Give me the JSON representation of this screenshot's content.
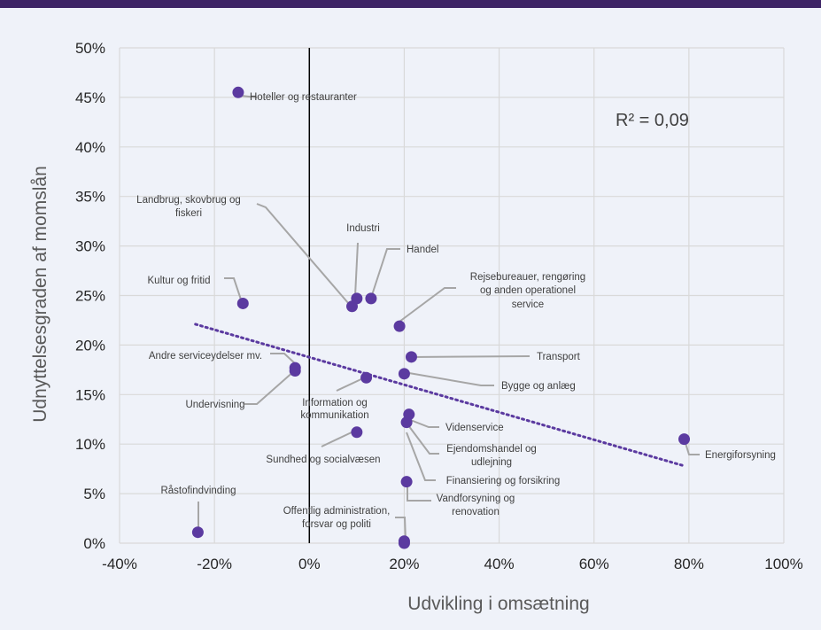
{
  "colors": {
    "top_band": "#3d2466",
    "background": "#eff2f9",
    "grid": "#d9d9d9",
    "zero_line": "#000000",
    "point": "#5b3aa0",
    "trendline": "#5b3aa0",
    "leader_line": "#a6a6a6",
    "text": "#404040"
  },
  "chart_data": {
    "type": "scatter",
    "title": "",
    "xlabel": "Udvikling i omsætning",
    "ylabel": "Udnyttelsesgraden af momslån",
    "xlim": [
      -0.4,
      1.0
    ],
    "ylim": [
      0,
      0.5
    ],
    "x_ticks": [
      -0.4,
      -0.2,
      0,
      0.2,
      0.4,
      0.6,
      0.8,
      1.0
    ],
    "y_ticks": [
      0,
      0.05,
      0.1,
      0.15,
      0.2,
      0.25,
      0.3,
      0.35,
      0.4,
      0.45,
      0.5
    ],
    "x_tick_labels": [
      "-40%",
      "-20%",
      "0%",
      "20%",
      "40%",
      "60%",
      "80%",
      "100%"
    ],
    "y_tick_labels": [
      "0%",
      "5%",
      "10%",
      "15%",
      "20%",
      "25%",
      "30%",
      "35%",
      "40%",
      "45%",
      "50%"
    ],
    "grid": true,
    "r_squared": "R² = 0,09",
    "trendline": {
      "x": [
        -0.24,
        0.79
      ],
      "y": [
        0.221,
        0.078
      ]
    },
    "points": [
      {
        "label": "Hoteller og restauranter",
        "x": -0.15,
        "y": 0.455
      },
      {
        "label": "Landbrug, skovbrug og fiskeri",
        "x": 0.09,
        "y": 0.239
      },
      {
        "label": "Industri",
        "x": 0.1,
        "y": 0.247
      },
      {
        "label": "Handel",
        "x": 0.13,
        "y": 0.247
      },
      {
        "label": "Kultur og fritid",
        "x": -0.14,
        "y": 0.242
      },
      {
        "label": "Rejsebureauer, rengøring og anden operationel service",
        "x": 0.19,
        "y": 0.219
      },
      {
        "label": "Transport",
        "x": 0.215,
        "y": 0.188
      },
      {
        "label": "Andre serviceydelser mv.",
        "x": -0.03,
        "y": 0.177
      },
      {
        "label": "Undervisning",
        "x": -0.03,
        "y": 0.174
      },
      {
        "label": "Bygge og anlæg",
        "x": 0.2,
        "y": 0.171
      },
      {
        "label": "Information og kommunikation",
        "x": 0.12,
        "y": 0.167
      },
      {
        "label": "Videnservice",
        "x": 0.21,
        "y": 0.13
      },
      {
        "label": "Ejendomshandel og udlejning",
        "x": 0.205,
        "y": 0.122
      },
      {
        "label": "Sundhed og socialvæsen",
        "x": 0.1,
        "y": 0.112
      },
      {
        "label": "Energiforsyning",
        "x": 0.79,
        "y": 0.105
      },
      {
        "label": "Finansiering og forsikring",
        "x": 0.205,
        "y": 0.062
      },
      {
        "label": "Vandforsyning og renovation",
        "x": 0.2,
        "y": 0.002
      },
      {
        "label": "Offentlig administration, forsvar og politi",
        "x": 0.2,
        "y": 0.0
      },
      {
        "label": "Råstofindvinding",
        "x": -0.235,
        "y": 0.011
      }
    ]
  }
}
